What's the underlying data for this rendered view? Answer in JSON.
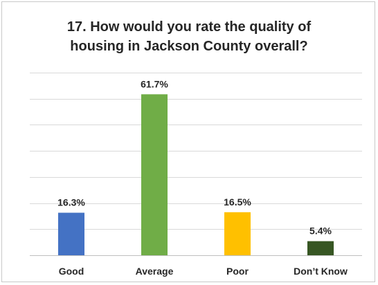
{
  "chart_data": {
    "type": "bar",
    "title_lines": [
      "17. How would you rate the quality of",
      "housing in Jackson County overall?"
    ],
    "categories": [
      "Good",
      "Average",
      "Poor",
      "Don’t Know"
    ],
    "values": [
      16.3,
      61.7,
      16.5,
      5.4
    ],
    "data_labels": [
      "16.3%",
      "61.7%",
      "16.5%",
      "5.4%"
    ],
    "colors": [
      "#4472C4",
      "#70AD47",
      "#FFC000",
      "#375623"
    ],
    "ylim": [
      0,
      70
    ],
    "grid": true,
    "legend": "none",
    "xlabel": "",
    "ylabel": ""
  }
}
